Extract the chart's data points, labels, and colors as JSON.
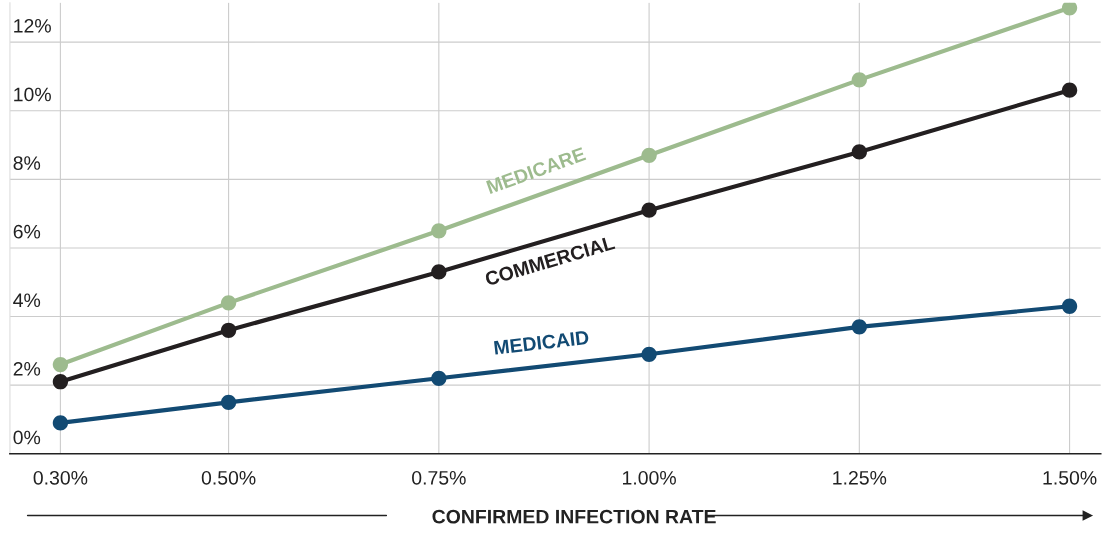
{
  "chart_data": {
    "type": "line",
    "xlabel": "CONFIRMED INFECTION RATE",
    "x": [
      0.3,
      0.5,
      0.75,
      1.0,
      1.25,
      1.5
    ],
    "series": [
      {
        "name": "MEDICARE",
        "color": "#9dbb8e",
        "values": [
          2.6,
          4.4,
          6.5,
          8.7,
          10.9,
          13.0
        ]
      },
      {
        "name": "COMMERCIAL",
        "color": "#231f20",
        "values": [
          2.1,
          3.6,
          5.3,
          7.1,
          8.8,
          10.6
        ]
      },
      {
        "name": "MEDICAID",
        "color": "#124a73",
        "values": [
          0.9,
          1.5,
          2.2,
          2.9,
          3.7,
          4.3
        ]
      }
    ],
    "xlim": [
      0.24,
      1.537
    ],
    "ylim": [
      0,
      13.15
    ],
    "xticks": [
      {
        "value": 0.3,
        "label": "0.30%"
      },
      {
        "value": 0.5,
        "label": "0.50%"
      },
      {
        "value": 0.75,
        "label": "0.75%"
      },
      {
        "value": 1.0,
        "label": "1.00%"
      },
      {
        "value": 1.25,
        "label": "1.25%"
      },
      {
        "value": 1.5,
        "label": "1.50%"
      }
    ],
    "yticks": [
      {
        "value": 0,
        "label": "0%"
      },
      {
        "value": 2,
        "label": "2%"
      },
      {
        "value": 4,
        "label": "4%"
      },
      {
        "value": 6,
        "label": "6%"
      },
      {
        "value": 8,
        "label": "8%"
      },
      {
        "value": 10,
        "label": "10%"
      },
      {
        "value": 12,
        "label": "12%"
      }
    ],
    "grid": true,
    "marker": "circle",
    "line_style": "solid"
  }
}
